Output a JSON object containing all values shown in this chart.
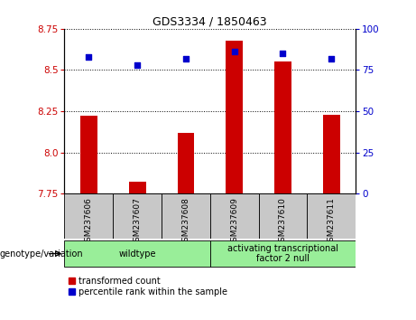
{
  "title": "GDS3334 / 1850463",
  "samples": [
    "GSM237606",
    "GSM237607",
    "GSM237608",
    "GSM237609",
    "GSM237610",
    "GSM237611"
  ],
  "transformed_count": [
    8.22,
    7.82,
    8.12,
    8.68,
    8.55,
    8.23
  ],
  "percentile_rank": [
    83,
    78,
    82,
    86,
    85,
    82
  ],
  "bar_color": "#cc0000",
  "dot_color": "#0000cc",
  "ylim_left": [
    7.75,
    8.75
  ],
  "ylim_right": [
    0,
    100
  ],
  "yticks_left": [
    7.75,
    8.0,
    8.25,
    8.5,
    8.75
  ],
  "yticks_right": [
    0,
    25,
    50,
    75,
    100
  ],
  "ytick_labels_right": [
    "0",
    "25",
    "50",
    "75",
    "100"
  ],
  "groups": [
    {
      "label": "wildtype",
      "samples": [
        0,
        1,
        2
      ],
      "color": "#99ee99"
    },
    {
      "label": "activating transcriptional\nfactor 2 null",
      "samples": [
        3,
        4,
        5
      ],
      "color": "#99ee99"
    }
  ],
  "genotype_label": "genotype/variation",
  "legend_bar_label": "transformed count",
  "legend_dot_label": "percentile rank within the sample",
  "background_color": "#ffffff",
  "plot_bg_color": "#ffffff",
  "grid_color": "#000000",
  "tick_label_color_left": "#cc0000",
  "tick_label_color_right": "#0000cc",
  "sample_bg_color": "#c8c8c8",
  "bar_width": 0.35,
  "dot_size": 22,
  "title_fontsize": 9,
  "axis_fontsize": 7.5,
  "sample_fontsize": 6.5,
  "group_fontsize": 7,
  "legend_fontsize": 7
}
